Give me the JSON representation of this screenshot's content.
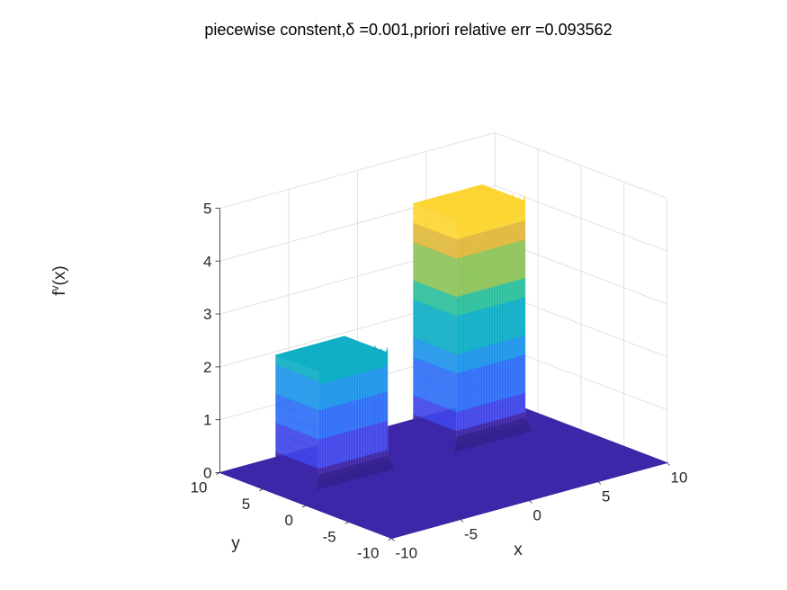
{
  "chart_data": {
    "type": "surface",
    "title": "piecewise constent,δ =0.001,priori relative err =0.093562",
    "xlabel": "x",
    "ylabel": "y",
    "zlabel": "f",
    "zlabel_superscript": "v",
    "zlabel_suffix": "(x)",
    "xlim": [
      -10,
      10
    ],
    "ylim": [
      -10,
      10
    ],
    "zlim": [
      0,
      5
    ],
    "x_ticks": [
      -10,
      -5,
      0,
      5,
      10
    ],
    "y_ticks": [
      -10,
      -5,
      0,
      5,
      10
    ],
    "z_ticks": [
      0,
      1,
      2,
      3,
      4,
      5
    ],
    "grid": true,
    "colormap": "parula",
    "colors": [
      "#3e26a8",
      "#4146e9",
      "#2f6ff7",
      "#1e95ea",
      "#10afc6",
      "#2dc09d",
      "#8ec45a",
      "#e0b93c",
      "#fcd532",
      "#f9fb14"
    ],
    "blocks": [
      {
        "x_range": [
          -7.5,
          -2.5
        ],
        "y_range": [
          2.5,
          7.5
        ],
        "height": 2.2
      },
      {
        "x_range": [
          2.5,
          7.5
        ],
        "y_range": [
          2.5,
          7.5
        ],
        "height": 4.35
      }
    ],
    "base_value": 0
  }
}
